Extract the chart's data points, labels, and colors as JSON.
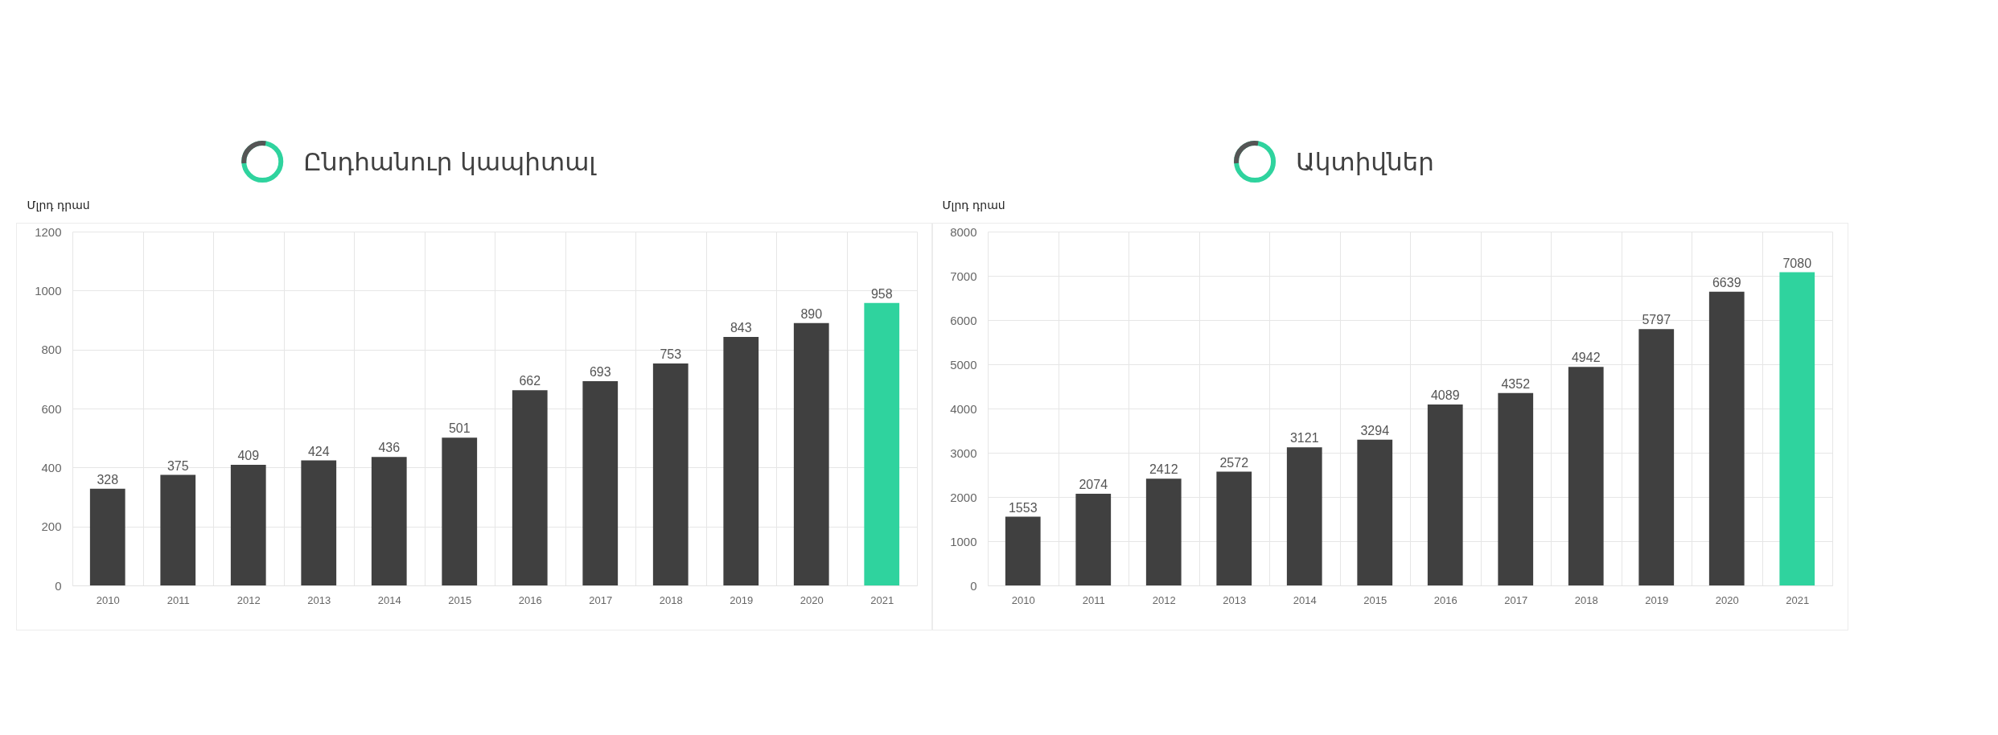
{
  "chart_data": [
    {
      "type": "bar",
      "title": "Ընդհանուր կապիտալ",
      "ylabel": "Մլրդ դրամ",
      "categories": [
        "2010",
        "2011",
        "2012",
        "2013",
        "2014",
        "2015",
        "2016",
        "2017",
        "2018",
        "2019",
        "2020",
        "2021"
      ],
      "values": [
        328,
        375,
        409,
        424,
        436,
        501,
        662,
        693,
        753,
        843,
        890,
        958
      ],
      "colors": [
        "#404040",
        "#404040",
        "#404040",
        "#404040",
        "#404040",
        "#404040",
        "#404040",
        "#404040",
        "#404040",
        "#404040",
        "#404040",
        "#2fd39e"
      ],
      "ylim": [
        0,
        1200
      ],
      "yticks": [
        0,
        200,
        400,
        600,
        800,
        1000,
        1200
      ],
      "grid": true,
      "data_labels": true
    },
    {
      "type": "bar",
      "title": "Ակտիվներ",
      "ylabel": "Մլրդ դրամ",
      "categories": [
        "2010",
        "2011",
        "2012",
        "2013",
        "2014",
        "2015",
        "2016",
        "2017",
        "2018",
        "2019",
        "2020",
        "2021"
      ],
      "values": [
        1553,
        2074,
        2412,
        2572,
        3121,
        3294,
        4089,
        4352,
        4942,
        5797,
        6639,
        7080
      ],
      "colors": [
        "#404040",
        "#404040",
        "#404040",
        "#404040",
        "#404040",
        "#404040",
        "#404040",
        "#404040",
        "#404040",
        "#404040",
        "#404040",
        "#2fd39e"
      ],
      "ylim": [
        0,
        8000
      ],
      "yticks": [
        0,
        1000,
        2000,
        3000,
        4000,
        5000,
        6000,
        7000,
        8000
      ],
      "grid": true,
      "data_labels": true
    }
  ]
}
